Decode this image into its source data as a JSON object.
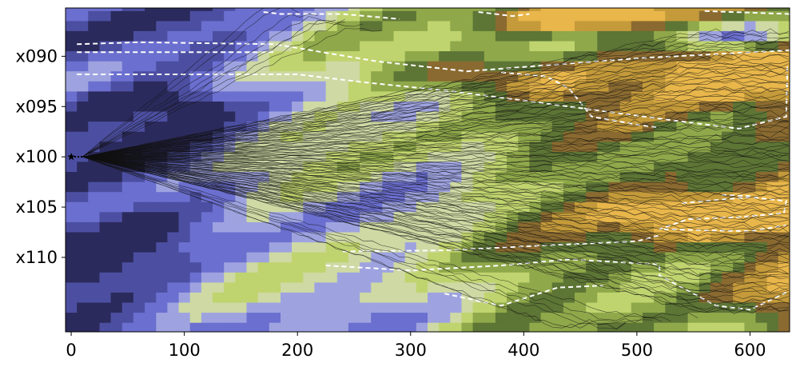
{
  "chart_data": {
    "type": "heatmap",
    "title": "",
    "xlabel": "",
    "ylabel": "",
    "xlim": [
      -5,
      635
    ],
    "ylim_rows": [
      85.2,
      117.4
    ],
    "x_ticks": [
      {
        "value": 0,
        "label": "0"
      },
      {
        "value": 100,
        "label": "100"
      },
      {
        "value": 200,
        "label": "200"
      },
      {
        "value": 300,
        "label": "300"
      },
      {
        "value": 400,
        "label": "400"
      },
      {
        "value": 500,
        "label": "500"
      },
      {
        "value": 600,
        "label": "600"
      }
    ],
    "y_ticks": [
      {
        "value": 90,
        "label": "x090"
      },
      {
        "value": 95,
        "label": "x095"
      },
      {
        "value": 100,
        "label": "x100"
      },
      {
        "value": 105,
        "label": "x105"
      },
      {
        "value": 110,
        "label": "x110"
      }
    ],
    "colormap": [
      "#2b2a5c",
      "#4c4fa1",
      "#6b6fcf",
      "#9ea3e0",
      "#ced9a4",
      "#bfd46e",
      "#8fa84a",
      "#5d7535",
      "#8a6a30",
      "#c49a3a",
      "#e8b64a"
    ],
    "origin": {
      "x": 0,
      "y": 100,
      "marker": "star"
    },
    "fan_apex": {
      "x": 10,
      "y": 100
    },
    "paths_count": 120,
    "grid": false,
    "legend": "none"
  }
}
